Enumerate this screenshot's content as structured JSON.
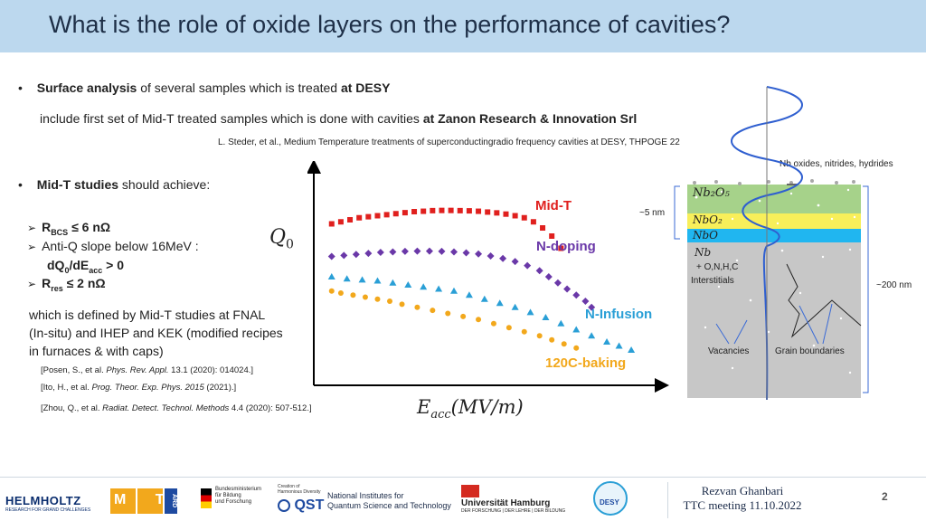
{
  "title": "What is the role of oxide layers on the performance of cavities?",
  "bullet1": {
    "bold": "Surface analysis",
    "text": " of several samples which is treated ",
    "bold2": "at DESY"
  },
  "line2": {
    "text": "include first set of Mid-T treated samples which is done with cavities ",
    "bold": "at Zanon Research & Innovation Srl"
  },
  "reference_steder": "L. Steder, et al., Medium Temperature treatments of superconductingradio frequency cavities at DESY, THPOGE 22",
  "bullet2": {
    "bold": "Mid-T studies",
    "text": " should achieve:"
  },
  "targets": {
    "rbcs_label": "R",
    "rbcs_sub": "BCS",
    "rbcs_rest": " ≤ 6 nΩ",
    "antiq": "Anti-Q slope below 16MeV :",
    "dq_label": "dQ",
    "dq_sub0": "0",
    "dq_mid": "/dE",
    "dq_sub_acc": "acc",
    "dq_rest": " > 0",
    "rres_label": "R",
    "rres_sub": "res",
    "rres_rest": " ≤ 2 nΩ"
  },
  "defined_text": {
    "line1": "which is defined by Mid-T studies at FNAL",
    "line2": "(In-situ) and IHEP and KEK (modified recipes",
    "line3": "in furnaces & with caps)"
  },
  "references": {
    "posen_pre": "[Posen, S., et al. ",
    "posen_journal": "Phys. Rev. Appl.",
    "posen_post": " 13.1 (2020): 014024.]",
    "ito_pre": "[Ito, H., et al. ",
    "ito_journal": "Prog. Theor. Exp. Phys. 2015",
    "ito_post": " (2021).]",
    "zhou_pre": "[Zhou, Q., et al. ",
    "zhou_journal": "Radiat. Detect. Technol. Methods",
    "zhou_post": " 4.4 (2020): 507-512.]"
  },
  "chart_data": {
    "type": "scatter",
    "title": "",
    "ylabel": "Q0",
    "ylabel_base": "Q",
    "ylabel_sub": "0",
    "xlabel_base": "E",
    "xlabel_sub": "acc",
    "xlabel_rest": "(MV/m)",
    "series": [
      {
        "name": "Mid-T",
        "color": "#e0201e",
        "marker": "square",
        "x": [
          0.02,
          0.05,
          0.08,
          0.11,
          0.14,
          0.17,
          0.2,
          0.23,
          0.26,
          0.29,
          0.32,
          0.35,
          0.38,
          0.41,
          0.44,
          0.47,
          0.5,
          0.53,
          0.56,
          0.59,
          0.62,
          0.65,
          0.68,
          0.71,
          0.74,
          0.77
        ],
        "y": [
          0.78,
          0.79,
          0.8,
          0.81,
          0.815,
          0.82,
          0.825,
          0.83,
          0.835,
          0.84,
          0.842,
          0.845,
          0.846,
          0.846,
          0.845,
          0.844,
          0.842,
          0.838,
          0.834,
          0.828,
          0.82,
          0.81,
          0.79,
          0.76,
          0.72,
          0.66
        ]
      },
      {
        "name": "N-doping",
        "color": "#6a38a8",
        "marker": "diamond",
        "x": [
          0.02,
          0.06,
          0.1,
          0.14,
          0.18,
          0.22,
          0.26,
          0.3,
          0.34,
          0.38,
          0.42,
          0.46,
          0.5,
          0.54,
          0.58,
          0.62,
          0.66,
          0.7,
          0.73,
          0.76,
          0.79,
          0.82,
          0.85,
          0.87
        ],
        "y": [
          0.62,
          0.625,
          0.63,
          0.635,
          0.64,
          0.642,
          0.645,
          0.646,
          0.646,
          0.645,
          0.642,
          0.638,
          0.632,
          0.622,
          0.61,
          0.595,
          0.575,
          0.55,
          0.52,
          0.49,
          0.46,
          0.43,
          0.4,
          0.37
        ]
      },
      {
        "name": "N-Infusion",
        "color": "#2a9fd6",
        "marker": "triangle",
        "x": [
          0.02,
          0.07,
          0.12,
          0.17,
          0.22,
          0.27,
          0.32,
          0.37,
          0.42,
          0.47,
          0.52,
          0.57,
          0.62,
          0.67,
          0.72,
          0.77,
          0.82,
          0.87,
          0.92,
          0.96,
          1.0
        ],
        "y": [
          0.52,
          0.51,
          0.505,
          0.5,
          0.49,
          0.48,
          0.47,
          0.46,
          0.45,
          0.43,
          0.41,
          0.39,
          0.37,
          0.345,
          0.32,
          0.29,
          0.26,
          0.23,
          0.2,
          0.18,
          0.16
        ]
      },
      {
        "name": "120C-baking",
        "color": "#f2a81c",
        "marker": "circle",
        "x": [
          0.02,
          0.05,
          0.09,
          0.13,
          0.17,
          0.21,
          0.25,
          0.3,
          0.35,
          0.4,
          0.45,
          0.5,
          0.55,
          0.6,
          0.65,
          0.7,
          0.74,
          0.78,
          0.82
        ],
        "y": [
          0.45,
          0.44,
          0.43,
          0.42,
          0.41,
          0.4,
          0.385,
          0.37,
          0.355,
          0.34,
          0.325,
          0.31,
          0.29,
          0.27,
          0.25,
          0.23,
          0.21,
          0.19,
          0.17
        ]
      }
    ],
    "xlim": [
      0,
      1.05
    ],
    "ylim": [
      0,
      1
    ],
    "grid": false
  },
  "curve_labels": {
    "midt": "Mid-T",
    "ndoping": "N-doping",
    "ninfusion": "N-Infusion",
    "baking": "120C-baking"
  },
  "layers_diagram": {
    "top_label": "Nb oxides, nitrides, hydrides",
    "nb2o5": "Nb₂O₅",
    "nbo2": "NbO₂",
    "nbo": "NbO",
    "nb": "Nb",
    "interstitials_line1": "+ O,N,H,C",
    "interstitials_line2": "Interstitials",
    "five_nm": "~5 nm",
    "two_hundred_nm": "~200 nm",
    "vacancies": "Vacancies",
    "grain_boundaries": "Grain boundaries",
    "colors": {
      "oxide": "#a6d28a",
      "nbo2": "#f8ef5a",
      "nbo": "#20b6f0",
      "bulk": "#c7c7c7",
      "wave": "#2f5fd0"
    }
  },
  "footer": {
    "author": "Rezvan Ghanbari",
    "meeting": "TTC meeting 11.10.2022",
    "page": "2",
    "helmholtz": "HELMHOLTZ",
    "helmholtz_sub": "RESEARCH FOR GRAND CHALLENGES",
    "mt": "M T",
    "ard": "ARD",
    "bmbf_line1": "Bundesministerium",
    "bmbf_line2": "für Bildung",
    "bmbf_line3": "und Forschung",
    "qst_small1": "Creation of",
    "qst_small2": "Harmonious Diversity",
    "qst": "QST",
    "nist_line1": "National Institutes for",
    "nist_line2": "Quantum Science and Technology",
    "uhh": "Universität Hamburg",
    "uhh_sub": "DER FORSCHUNG | DER LEHRE | DER BILDUNG",
    "desy": "DESY"
  }
}
